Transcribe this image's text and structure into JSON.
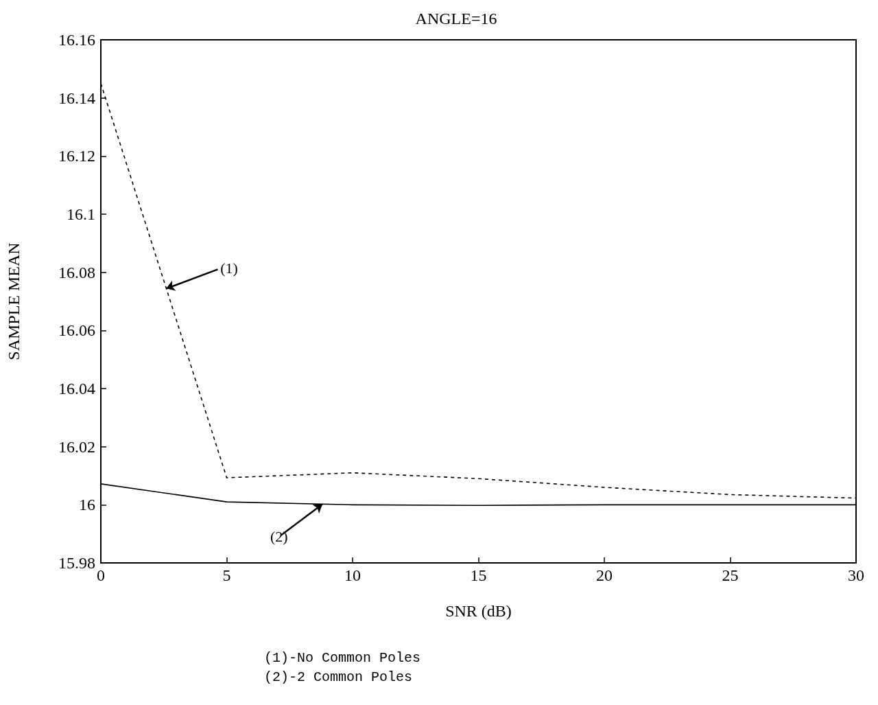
{
  "chart_data": {
    "type": "line",
    "title": "ANGLE=16",
    "xlabel": "SNR (dB)",
    "ylabel": "SAMPLE MEAN",
    "x": [
      0,
      5,
      10,
      15,
      20,
      25,
      30
    ],
    "series": [
      {
        "color": "#000000",
        "line_style": "dashed",
        "values": [
          16.145,
          16.0093,
          16.011,
          16.009,
          16.006,
          16.0035,
          16.0023
        ]
      },
      {
        "color": "#000000",
        "line_style": "solid",
        "values": [
          16.0072,
          16.001,
          16.0,
          15.9998,
          16.0,
          16.0,
          16.0
        ]
      }
    ],
    "xlim": [
      0,
      30
    ],
    "xticks": [
      0,
      5,
      10,
      15,
      20,
      25,
      30
    ],
    "ylim": [
      15.98,
      16.16
    ],
    "yticks": [
      15.98,
      16,
      16.02,
      16.04,
      16.06,
      16.08,
      16.1,
      16.12,
      16.14,
      16.16
    ],
    "grid": false,
    "marker": "none",
    "annotations": [
      {
        "text": "(1)",
        "x": 2.6,
        "y": 16.0744
      },
      {
        "text": "(2)",
        "x": 8.8,
        "y": 16.0002
      },
      "(1)-No Common Poles",
      "(2)-2 Common Poles"
    ]
  }
}
